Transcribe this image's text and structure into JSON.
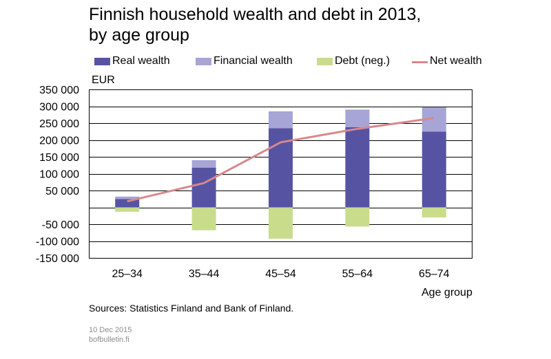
{
  "title_line1": "Finnish household wealth and debt in 2013,",
  "title_line2": "by age group",
  "unit_label": "EUR",
  "source": "Sources: Statistics Finland and Bank of Finland.",
  "date": "10 Dec 2015",
  "site": "bofbulletin.fi",
  "colors": {
    "real_wealth": "#5654a2",
    "financial_wealth": "#a7a5d6",
    "debt": "#c9dc8c",
    "net_wealth": "#d9878e"
  },
  "chart_data": {
    "type": "bar",
    "stacked": true,
    "xlabel": "Age group",
    "ylabel": "EUR",
    "ylim": [
      -150000,
      350000
    ],
    "yticks": [
      -150000,
      -100000,
      -50000,
      50000,
      100000,
      150000,
      200000,
      250000,
      300000,
      350000
    ],
    "ytick_labels": [
      "-150 000",
      "-100 000",
      "-50 000",
      "50 000",
      "100 000",
      "150 000",
      "200 000",
      "250 000",
      "300 000",
      "350 000"
    ],
    "grid": true,
    "legend_position": "top",
    "categories": [
      "25–34",
      "35–44",
      "45–54",
      "55–64",
      "65–74"
    ],
    "series": [
      {
        "name": "Real wealth",
        "kind": "bar",
        "values": [
          25000,
          118000,
          235000,
          238000,
          225000
        ]
      },
      {
        "name": "Financial wealth",
        "kind": "bar",
        "values": [
          7000,
          22000,
          50000,
          52000,
          72000
        ]
      },
      {
        "name": "Debt (neg.)",
        "kind": "bar",
        "values": [
          -13000,
          -68000,
          -93000,
          -57000,
          -30000
        ]
      },
      {
        "name": "Net wealth",
        "kind": "line",
        "values": [
          18000,
          72000,
          193000,
          233000,
          265000
        ]
      }
    ]
  }
}
